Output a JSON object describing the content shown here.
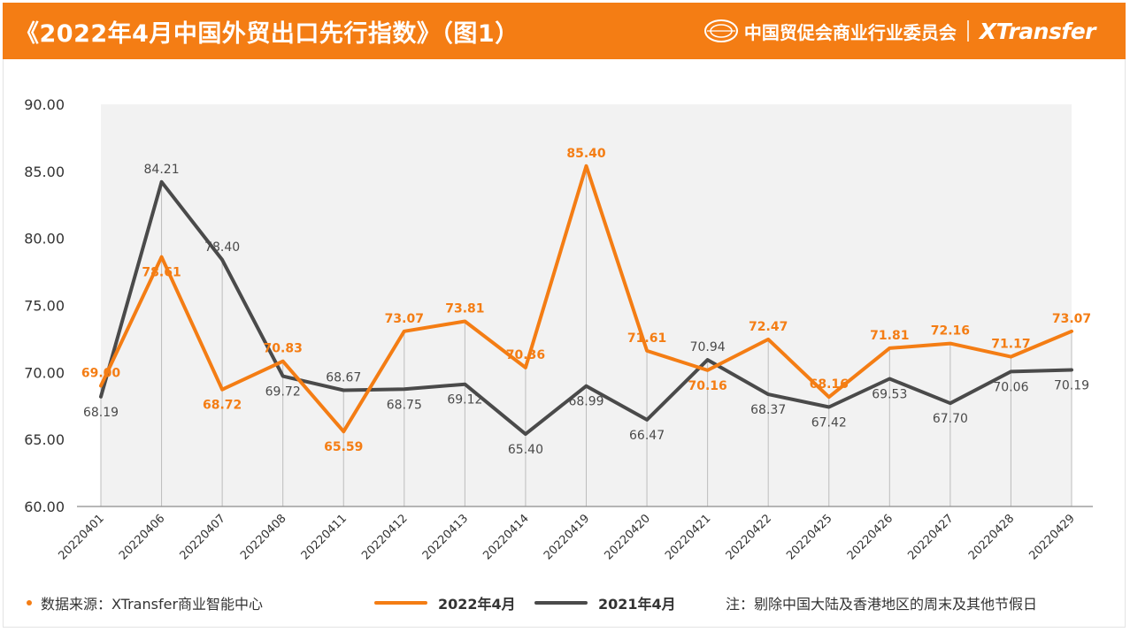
{
  "header": {
    "title": "《2022年4月中国外贸出口先行指数》（图1）",
    "org_name": "中国贸促会商业行业委员会",
    "logo_text": "XTransfer"
  },
  "colors": {
    "accent": "#f47d14",
    "series_2022": "#f47d14",
    "series_2021": "#4a4a4a",
    "plot_bg": "#f2f2f2"
  },
  "chart_data": {
    "type": "line",
    "title": "",
    "xlabel": "",
    "ylabel": "",
    "ylim": [
      60,
      90
    ],
    "y_ticks": [
      "60.00",
      "65.00",
      "70.00",
      "75.00",
      "80.00",
      "85.00",
      "90.00"
    ],
    "grid": "vertical",
    "legend_position": "bottom",
    "categories": [
      "20220401",
      "20220406",
      "20220407",
      "20220408",
      "20220411",
      "20220412",
      "20220413",
      "20220414",
      "20220419",
      "20220420",
      "20220421",
      "20220422",
      "20220425",
      "20220426",
      "20220427",
      "20220428",
      "20220429"
    ],
    "series": [
      {
        "name": "2022年4月",
        "color": "#f47d14",
        "values": [
          69.0,
          78.61,
          68.72,
          70.83,
          65.59,
          73.07,
          73.81,
          70.36,
          85.4,
          71.61,
          70.16,
          72.47,
          68.16,
          71.81,
          72.16,
          71.17,
          73.07
        ],
        "labels": [
          "69.00",
          "78.61",
          "68.72",
          "70.83",
          "65.59",
          "73.07",
          "73.81",
          "70.36",
          "85.40",
          "71.61",
          "70.16",
          "72.47",
          "68.16",
          "71.81",
          "72.16",
          "71.17",
          "73.07"
        ]
      },
      {
        "name": "2021年4月",
        "color": "#4a4a4a",
        "values": [
          68.19,
          84.21,
          78.4,
          69.72,
          68.67,
          68.75,
          69.12,
          65.4,
          68.99,
          66.47,
          70.94,
          68.37,
          67.42,
          69.53,
          67.7,
          70.06,
          70.19
        ],
        "labels": [
          "68.19",
          "84.21",
          "78.40",
          "69.72",
          "68.67",
          "68.75",
          "69.12",
          "65.40",
          "68.99",
          "66.47",
          "70.94",
          "68.37",
          "67.42",
          "69.53",
          "67.70",
          "70.06",
          "70.19"
        ]
      }
    ]
  },
  "footer": {
    "source": "数据来源：XTransfer商业智能中心",
    "legend_2022": "2022年4月",
    "legend_2021": "2021年4月",
    "note": "注：剔除中国大陆及香港地区的周末及其他节假日"
  }
}
